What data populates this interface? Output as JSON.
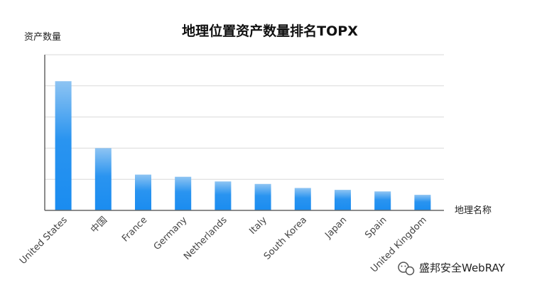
{
  "chart_data": {
    "type": "bar",
    "title": "地理位置资产数量排名TOPX",
    "xlabel": "地理名称",
    "ylabel": "资产数量",
    "categories": [
      "United States",
      "中国",
      "France",
      "Germany",
      "Netherlands",
      "Italy",
      "South Korea",
      "Japan",
      "Spain",
      "United Kingdom"
    ],
    "values": [
      4150,
      2000,
      1150,
      1080,
      930,
      850,
      720,
      660,
      610,
      500
    ],
    "ylim": [
      0,
      5000
    ],
    "grid": true,
    "legend": "none",
    "bar_color_top": "#8ec4f2",
    "bar_color_bottom": "#1a8cf0"
  },
  "watermark": {
    "text": "盛邦安全WebRAY",
    "icon": "wechat-icon"
  }
}
